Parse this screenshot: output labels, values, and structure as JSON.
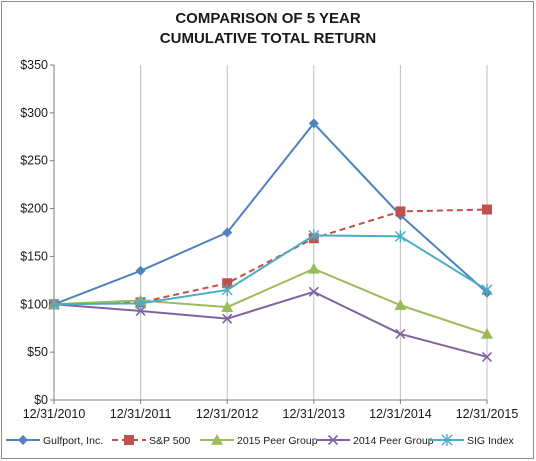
{
  "chart_data": {
    "type": "line",
    "title_lines": [
      "COMPARISON OF 5 YEAR",
      "CUMULATIVE TOTAL RETURN"
    ],
    "categories": [
      "12/31/2010",
      "12/31/2011",
      "12/31/2012",
      "12/31/2013",
      "12/31/2014",
      "12/31/2015"
    ],
    "ylim": [
      0,
      350
    ],
    "ytick_values": [
      0,
      50,
      100,
      150,
      200,
      250,
      300,
      350
    ],
    "ytick_labels": [
      "$0",
      "$50",
      "$100",
      "$150",
      "$200",
      "$250",
      "$300",
      "$350"
    ],
    "grid": "vertical",
    "legend_position": "bottom",
    "series": [
      {
        "name": "Gulfport, Inc.",
        "values": [
          100,
          135,
          175,
          289,
          193,
          112
        ],
        "color": "#4f81bd",
        "marker": "diamond",
        "dash": "solid"
      },
      {
        "name": "S&P 500",
        "values": [
          100,
          102,
          122,
          169,
          197,
          199
        ],
        "color": "#c0504d",
        "marker": "square",
        "dash": "dashed"
      },
      {
        "name": "2015 Peer Group",
        "values": [
          100,
          104,
          97,
          137,
          99,
          69
        ],
        "color": "#9bbb59",
        "marker": "triangle",
        "dash": "solid"
      },
      {
        "name": "2014 Peer Group",
        "values": [
          100,
          93,
          85,
          113,
          69,
          45
        ],
        "color": "#8064a2",
        "marker": "x",
        "dash": "solid"
      },
      {
        "name": "SIG Index",
        "values": [
          100,
          101,
          115,
          172,
          171,
          115
        ],
        "color": "#4bacc6",
        "marker": "asterisk",
        "dash": "solid"
      }
    ]
  }
}
